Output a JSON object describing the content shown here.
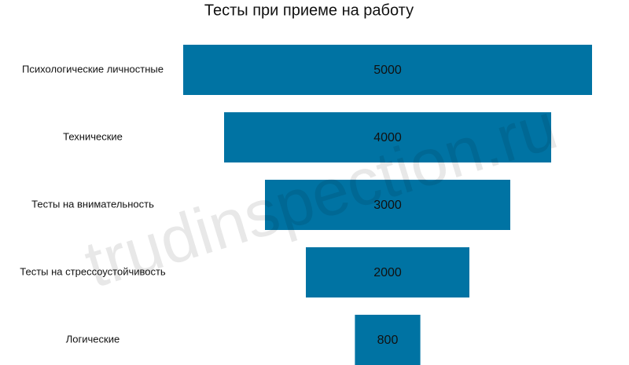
{
  "chart_data": {
    "type": "funnel",
    "title": "Тесты при приеме на работу",
    "categories": [
      "Психологические личностные",
      "Технические",
      "Тесты на внимательность",
      "Тесты на стрессоустойчивость",
      "Логические"
    ],
    "values": [
      5000,
      4000,
      3000,
      2000,
      800
    ],
    "color": "#0073a3",
    "watermark": "trudinspection.ru"
  }
}
